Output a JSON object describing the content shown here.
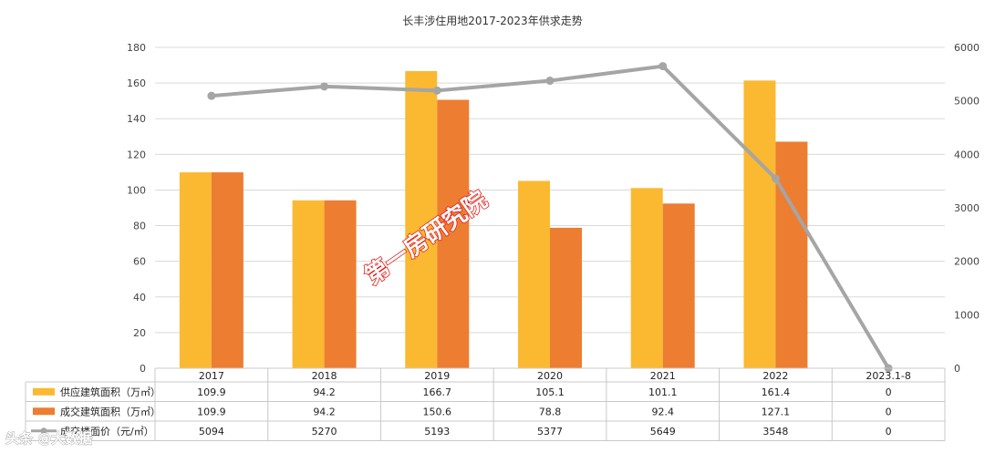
{
  "chart_data": {
    "type": "bar",
    "title": "长丰涉住用地2017-2023年供求走势",
    "categories": [
      "2017",
      "2018",
      "2019",
      "2020",
      "2021",
      "2022",
      "2023.1-8"
    ],
    "series": [
      {
        "name": "供应建筑面积（万㎡）",
        "kind": "bar",
        "axis": "left",
        "color": "#FBB931",
        "values": [
          109.9,
          94.2,
          166.7,
          105.1,
          101.1,
          161.4,
          0
        ]
      },
      {
        "name": "成交建筑面积（万㎡）",
        "kind": "bar",
        "axis": "left",
        "color": "#ED7D31",
        "values": [
          109.9,
          94.2,
          150.6,
          78.8,
          92.4,
          127.1,
          0
        ]
      },
      {
        "name": "成交楼面价（元/㎡）",
        "kind": "line",
        "axis": "right",
        "color": "#A5A5A5",
        "values": [
          5094,
          5270,
          5193,
          5377,
          5649,
          3548,
          0
        ]
      }
    ],
    "table_rows": [
      [
        "109.9",
        "94.2",
        "166.7",
        "105.1",
        "101.1",
        "161.4",
        "0"
      ],
      [
        "109.9",
        "94.2",
        "150.6",
        "78.8",
        "92.4",
        "127.1",
        "0"
      ],
      [
        "5094",
        "5270",
        "5193",
        "5377",
        "5649",
        "3548",
        "0"
      ]
    ],
    "y_left": {
      "ylim": [
        0,
        180
      ],
      "ticks": [
        "0",
        "20",
        "40",
        "60",
        "80",
        "100",
        "120",
        "140",
        "160",
        "180"
      ]
    },
    "y_right": {
      "ylim": [
        0,
        6000
      ],
      "ticks": [
        "0",
        "1000",
        "2000",
        "3000",
        "4000",
        "5000",
        "6000"
      ]
    },
    "grid": true,
    "legend": "data-table-below"
  },
  "watermark": {
    "text": "第一房研究院"
  },
  "corner_logo": {
    "text": "头条 @大数据"
  }
}
